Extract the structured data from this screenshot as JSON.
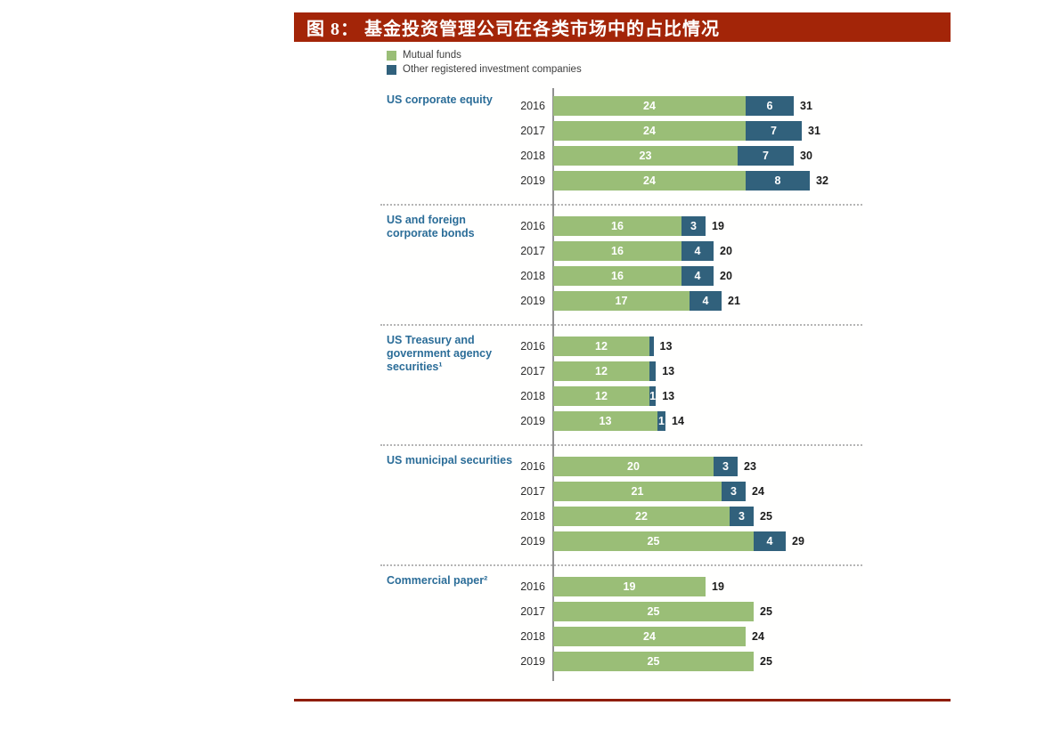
{
  "title_bar": {
    "text": "图 8： 基金投资管理公司在各类市场中的占比情况",
    "bg_color": "#A32508",
    "text_color": "#FFFFFF"
  },
  "legend": {
    "items": [
      {
        "name": "mutual-funds",
        "label": "Mutual funds",
        "color": "#9ABE77"
      },
      {
        "name": "other-registered-investment-companies",
        "label": "Other registered investment companies",
        "color": "#31617C"
      }
    ]
  },
  "colors": {
    "mutual": "#9ABE77",
    "other": "#31617C",
    "category_label": "#2B6D98",
    "year_label": "#2E2E2E",
    "total_label": "#1B1B1B",
    "title_red": "#A32508",
    "bottom_rule_red": "#8F1D05"
  },
  "chart_data": {
    "type": "bar",
    "orientation": "horizontal",
    "stacked": true,
    "value_unit": "percent share",
    "legend_position": "top-left",
    "axis": {
      "baseline": 0,
      "max_total_shown": 32,
      "gridlines": false
    },
    "series_names": [
      "Mutual funds",
      "Other registered investment companies"
    ],
    "years": [
      "2016",
      "2017",
      "2018",
      "2019"
    ],
    "groups": [
      {
        "category": "US corporate equity",
        "rows": [
          {
            "year": "2016",
            "mutual": 24,
            "mutual_label": "24",
            "other": 6,
            "other_label": "6",
            "total": 31,
            "total_label": "31"
          },
          {
            "year": "2017",
            "mutual": 24,
            "mutual_label": "24",
            "other": 7,
            "other_label": "7",
            "total": 31,
            "total_label": "31"
          },
          {
            "year": "2018",
            "mutual": 23,
            "mutual_label": "23",
            "other": 7,
            "other_label": "7",
            "total": 30,
            "total_label": "30"
          },
          {
            "year": "2019",
            "mutual": 24,
            "mutual_label": "24",
            "other": 8,
            "other_label": "8",
            "total": 32,
            "total_label": "32"
          }
        ]
      },
      {
        "category": "US and foreign corporate bonds",
        "rows": [
          {
            "year": "2016",
            "mutual": 16,
            "mutual_label": "16",
            "other": 3,
            "other_label": "3",
            "total": 19,
            "total_label": "19"
          },
          {
            "year": "2017",
            "mutual": 16,
            "mutual_label": "16",
            "other": 4,
            "other_label": "4",
            "total": 20,
            "total_label": "20"
          },
          {
            "year": "2018",
            "mutual": 16,
            "mutual_label": "16",
            "other": 4,
            "other_label": "4",
            "total": 20,
            "total_label": "20"
          },
          {
            "year": "2019",
            "mutual": 17,
            "mutual_label": "17",
            "other": 4,
            "other_label": "4",
            "total": 21,
            "total_label": "21"
          }
        ]
      },
      {
        "category": "US Treasury and government agency securities¹",
        "rows": [
          {
            "year": "2016",
            "mutual": 12,
            "mutual_label": "12",
            "other": 0.5,
            "other_label": "",
            "total": 13,
            "total_label": "13"
          },
          {
            "year": "2017",
            "mutual": 12,
            "mutual_label": "12",
            "other": 0.8,
            "other_label": "",
            "total": 13,
            "total_label": "13"
          },
          {
            "year": "2018",
            "mutual": 12,
            "mutual_label": "12",
            "other": 0.8,
            "other_label": "1",
            "total": 13,
            "total_label": "13"
          },
          {
            "year": "2019",
            "mutual": 13,
            "mutual_label": "13",
            "other": 1,
            "other_label": "1",
            "total": 14,
            "total_label": "14"
          }
        ]
      },
      {
        "category": "US municipal securities",
        "rows": [
          {
            "year": "2016",
            "mutual": 20,
            "mutual_label": "20",
            "other": 3,
            "other_label": "3",
            "total": 23,
            "total_label": "23"
          },
          {
            "year": "2017",
            "mutual": 21,
            "mutual_label": "21",
            "other": 3,
            "other_label": "3",
            "total": 24,
            "total_label": "24"
          },
          {
            "year": "2018",
            "mutual": 22,
            "mutual_label": "22",
            "other": 3,
            "other_label": "3",
            "total": 25,
            "total_label": "25"
          },
          {
            "year": "2019",
            "mutual": 25,
            "mutual_label": "25",
            "other": 4,
            "other_label": "4",
            "total": 29,
            "total_label": "29"
          }
        ]
      },
      {
        "category": "Commercial paper²",
        "rows": [
          {
            "year": "2016",
            "mutual": 19,
            "mutual_label": "19",
            "other": 0,
            "other_label": "",
            "total": 19,
            "total_label": "19"
          },
          {
            "year": "2017",
            "mutual": 25,
            "mutual_label": "25",
            "other": 0,
            "other_label": "",
            "total": 25,
            "total_label": "25"
          },
          {
            "year": "2018",
            "mutual": 24,
            "mutual_label": "24",
            "other": 0,
            "other_label": "",
            "total": 24,
            "total_label": "24"
          },
          {
            "year": "2019",
            "mutual": 25,
            "mutual_label": "25",
            "other": 0,
            "other_label": "",
            "total": 25,
            "total_label": "25"
          }
        ]
      }
    ]
  }
}
